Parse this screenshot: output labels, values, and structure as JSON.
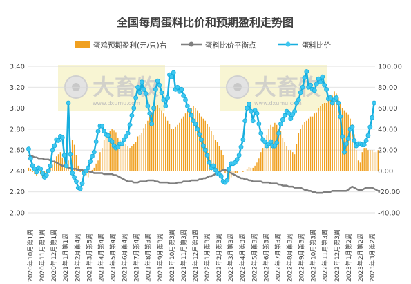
{
  "chart_data": {
    "type": "bar-line",
    "title": "全国每周蛋料比价和预期盈利走势图",
    "legend_position": "top",
    "grid": true,
    "colors": {
      "profit": "#F0A020",
      "breakeven": "#7F7F7F",
      "ratio": "#17AEDE",
      "ratio_marker_fill": "#3EC7F0",
      "grid": "#D9D9D9",
      "axis_text": "#404040"
    },
    "y_left": {
      "min": 2.0,
      "max": 3.4,
      "step": 0.2,
      "ticks": [
        "2.00",
        "2.20",
        "2.40",
        "2.60",
        "2.80",
        "3.00",
        "3.20",
        "3.40"
      ]
    },
    "y_right": {
      "min": -40,
      "max": 100,
      "step": 20,
      "ticks": [
        "-40.00",
        "-20.00",
        "0.00",
        "20.00",
        "40.00",
        "60.00",
        "80.00",
        "100.00"
      ]
    },
    "x_labels": [
      "2020年10月第1周",
      "2020年11月第1周",
      "2020年12月第1周",
      "2021年1月第1周",
      "2021年2月第4周",
      "2021年3月第5周",
      "2021年4月第4周",
      "2021年5月第4周",
      "2021年6月第4周",
      "2021年7月第4周",
      "2021年8月第3周",
      "2021年9月第3周",
      "2021年10月第3周",
      "2021年11月第3周",
      "2021年12月第3周",
      "2022年1月第3周",
      "2022年2月第3周",
      "2022年3月第3周",
      "2022年4月第3周",
      "2022年5月第3周",
      "2022年6月第3周",
      "2022年7月第3周",
      "2022年8月第3周",
      "2022年9月第3周",
      "2022年10月第3周",
      "2022年11月第3周",
      "2022年12月第3周",
      "2023年1月第2周",
      "2023年2月第2周",
      "2023年3月第2周"
    ],
    "series": [
      {
        "name": "蛋鸡预期盈利(元/只)右",
        "type": "bar",
        "axis": "right",
        "values": [
          3,
          2,
          -1,
          -3,
          -5,
          -2,
          -3,
          -7,
          -4,
          -3,
          0,
          4,
          6,
          10,
          14,
          16,
          18,
          13,
          14,
          11,
          10,
          4,
          30,
          25,
          15,
          5,
          -1,
          -3,
          -3,
          -4,
          -6,
          -2,
          1,
          3,
          7,
          10,
          18,
          22,
          30,
          34,
          35,
          38,
          40,
          39,
          37,
          32,
          30,
          28,
          27,
          26,
          24,
          22,
          24,
          26,
          28,
          33,
          34,
          36,
          41,
          45,
          48,
          52,
          56,
          60,
          62,
          63,
          60,
          58,
          55,
          52,
          48,
          45,
          40,
          40,
          42,
          44,
          46,
          50,
          52,
          55,
          58,
          58,
          60,
          62,
          60,
          58,
          55,
          52,
          50,
          48,
          45,
          42,
          38,
          34,
          30,
          28,
          24,
          20,
          15,
          -2,
          -5,
          -8,
          -6,
          -4,
          -2,
          -2,
          0,
          0,
          -1,
          0,
          2,
          4,
          3,
          3,
          5,
          8,
          12,
          18,
          22,
          28,
          34,
          40,
          44,
          42,
          46,
          44,
          40,
          38,
          32,
          28,
          24,
          20,
          20,
          18,
          16,
          26,
          36,
          40,
          44,
          47,
          48,
          50,
          52,
          52,
          55,
          56,
          60,
          62,
          64,
          65,
          65,
          68,
          70,
          72,
          76,
          74,
          70,
          64,
          60,
          58,
          56,
          54,
          50,
          45,
          35,
          20,
          10,
          8,
          18,
          22,
          22,
          20,
          20,
          20,
          18,
          18,
          20
        ]
      },
      {
        "name": "蛋料比价平衡点",
        "type": "line",
        "axis": "left",
        "values": [
          2.55,
          2.54,
          2.54,
          2.53,
          2.53,
          2.52,
          2.52,
          2.52,
          2.51,
          2.51,
          2.51,
          2.5,
          2.49,
          2.49,
          2.48,
          2.47,
          2.46,
          2.45,
          2.45,
          2.44,
          2.43,
          2.43,
          2.42,
          2.42,
          2.42,
          2.41,
          2.41,
          2.41,
          2.4,
          2.4,
          2.4,
          2.39,
          2.39,
          2.38,
          2.38,
          2.38,
          2.38,
          2.38,
          2.37,
          2.37,
          2.37,
          2.37,
          2.37,
          2.36,
          2.36,
          2.35,
          2.34,
          2.33,
          2.32,
          2.31,
          2.3,
          2.3,
          2.3,
          2.29,
          2.29,
          2.29,
          2.3,
          2.3,
          2.3,
          2.3,
          2.31,
          2.31,
          2.31,
          2.31,
          2.3,
          2.3,
          2.29,
          2.29,
          2.29,
          2.29,
          2.29,
          2.28,
          2.28,
          2.28,
          2.28,
          2.29,
          2.29,
          2.29,
          2.3,
          2.3,
          2.3,
          2.3,
          2.31,
          2.31,
          2.31,
          2.31,
          2.32,
          2.32,
          2.33,
          2.33,
          2.34,
          2.35,
          2.35,
          2.36,
          2.37,
          2.38,
          2.39,
          2.4,
          2.41,
          2.41,
          2.4,
          2.39,
          2.38,
          2.37,
          2.36,
          2.35,
          2.34,
          2.33,
          2.33,
          2.32,
          2.32,
          2.31,
          2.31,
          2.3,
          2.3,
          2.3,
          2.3,
          2.3,
          2.29,
          2.29,
          2.29,
          2.29,
          2.28,
          2.28,
          2.28,
          2.28,
          2.27,
          2.27,
          2.26,
          2.26,
          2.26,
          2.25,
          2.25,
          2.25,
          2.24,
          2.24,
          2.24,
          2.24,
          2.23,
          2.22,
          2.22,
          2.21,
          2.21,
          2.2,
          2.2,
          2.19,
          2.19,
          2.19,
          2.19,
          2.2,
          2.2,
          2.2,
          2.2,
          2.21,
          2.21,
          2.21,
          2.21,
          2.21,
          2.21,
          2.21,
          2.21,
          2.22,
          2.24,
          2.25,
          2.24,
          2.23,
          2.22,
          2.22,
          2.22,
          2.23,
          2.24,
          2.24,
          2.24,
          2.24,
          2.23,
          2.22,
          2.21,
          2.21
        ]
      },
      {
        "name": "蛋料比价",
        "type": "line",
        "axis": "left",
        "markers": true,
        "values": [
          2.61,
          2.52,
          2.45,
          2.42,
          2.39,
          2.43,
          2.42,
          2.38,
          2.34,
          2.36,
          2.4,
          2.45,
          2.6,
          2.64,
          2.7,
          2.69,
          2.73,
          2.72,
          2.55,
          2.45,
          3.05,
          2.56,
          2.38,
          2.34,
          2.3,
          2.24,
          2.23,
          2.28,
          2.38,
          2.4,
          2.43,
          2.49,
          2.54,
          2.58,
          2.68,
          2.78,
          2.83,
          2.83,
          2.78,
          2.75,
          2.74,
          2.7,
          2.68,
          2.64,
          2.62,
          2.63,
          2.66,
          2.66,
          2.7,
          2.73,
          2.76,
          2.84,
          2.93,
          3.0,
          3.1,
          3.2,
          3.15,
          3.25,
          3.18,
          3.14,
          3.02,
          2.95,
          2.85,
          3.0,
          3.18,
          3.26,
          3.22,
          3.15,
          3.08,
          3.02,
          3.1,
          3.32,
          3.3,
          3.34,
          3.18,
          3.2,
          3.16,
          3.18,
          3.12,
          3.08,
          3.02,
          2.98,
          2.93,
          2.88,
          2.85,
          2.8,
          2.75,
          2.7,
          2.64,
          2.6,
          2.55,
          2.48,
          2.43,
          2.45,
          2.41,
          2.38,
          2.37,
          2.35,
          2.3,
          2.29,
          2.31,
          2.42,
          2.47,
          2.47,
          2.48,
          2.51,
          2.55,
          2.63,
          2.7,
          2.88,
          3.0,
          3.04,
          2.97,
          2.88,
          2.98,
          2.95,
          2.85,
          2.76,
          2.7,
          2.68,
          2.64,
          2.66,
          2.68,
          2.64,
          2.64,
          2.67,
          2.76,
          2.85,
          2.89,
          2.93,
          2.97,
          2.95,
          2.9,
          2.94,
          2.97,
          3.05,
          3.08,
          3.15,
          3.2,
          3.29,
          3.35,
          3.2,
          3.22,
          3.18,
          3.17,
          3.23,
          3.28,
          3.25,
          3.3,
          3.22,
          3.18,
          3.09,
          3.1,
          3.05,
          3.08,
          3.1,
          3.05,
          2.92,
          2.73,
          2.58,
          2.66,
          2.71,
          2.8,
          2.82,
          2.69,
          2.64,
          2.66,
          2.66,
          2.65,
          2.65,
          2.69,
          2.74,
          2.82,
          2.91,
          3.05
        ]
      }
    ]
  },
  "watermark_text": "大畜牧",
  "watermark_url": "www.dxumu.com"
}
